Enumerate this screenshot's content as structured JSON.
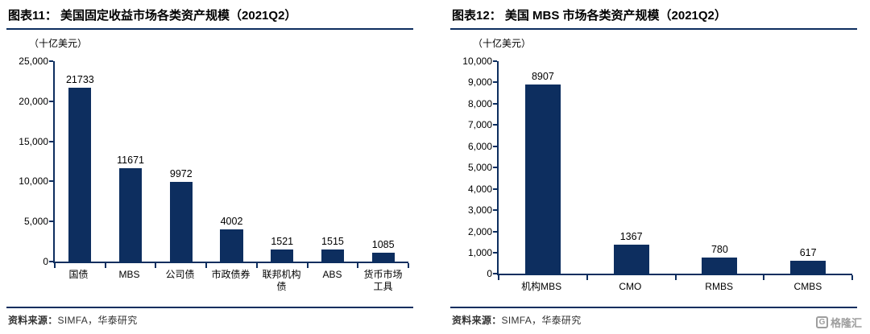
{
  "colors": {
    "accent": "#0d2e5f",
    "bar": "#0d2e5f",
    "source_text": "#333333",
    "logo_gray": "#9e9e9e"
  },
  "chart_data": [
    {
      "type": "bar",
      "title": "图表11：  美国固定收益市场各类资产规模（2021Q2）",
      "unit_label": "（十亿美元）",
      "categories": [
        "国债",
        "MBS",
        "公司债",
        "市政债券",
        "联邦机构债",
        "ABS",
        "货币市场工具"
      ],
      "values": [
        21733,
        11671,
        9972,
        4002,
        1521,
        1515,
        1085
      ],
      "ylim": [
        0,
        25000
      ],
      "ytick_step": 5000,
      "grid": false,
      "legend": false,
      "source_label": "资料来源：",
      "source_value": "SIMFA，华泰研究"
    },
    {
      "type": "bar",
      "title": "图表12：  美国 MBS 市场各类资产规模（2021Q2）",
      "unit_label": "（十亿美元）",
      "categories": [
        "机构MBS",
        "CMO",
        "RMBS",
        "CMBS"
      ],
      "values": [
        8907,
        1367,
        780,
        617
      ],
      "ylim": [
        0,
        10000
      ],
      "ytick_step": 1000,
      "grid": false,
      "legend": false,
      "source_label": "资料来源：",
      "source_value": "SIMFA，华泰研究"
    }
  ],
  "logo": {
    "icon_letter": "G",
    "text": "格隆汇"
  }
}
